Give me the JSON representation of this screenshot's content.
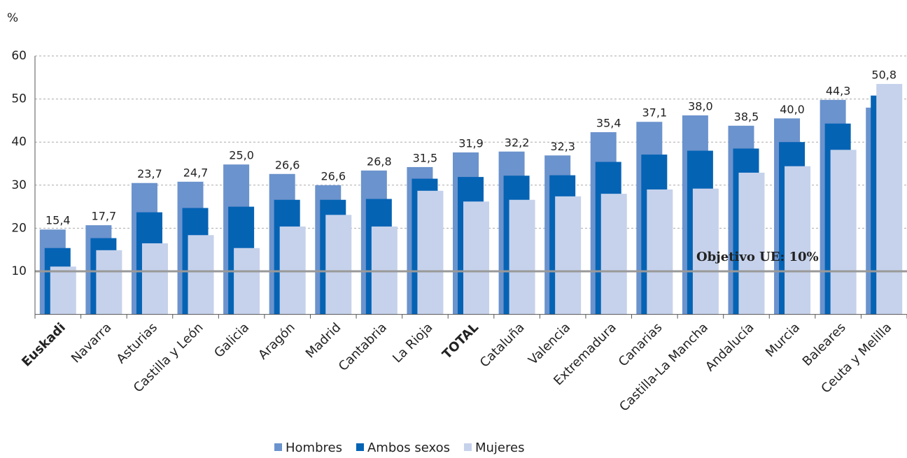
{
  "chart_data": {
    "type": "overlapped_bar",
    "y_unit": "%",
    "categories": [
      "Euskadi",
      "Navarra",
      "Asturias",
      "Castilla y León",
      "Galicia",
      "Aragón",
      "Madrid",
      "Cantabria",
      "La Rioja",
      "TOTAL",
      "Cataluña",
      "Valencia",
      "Extremadura",
      "Canarias",
      "Castilla-La Mancha",
      "Andalucía",
      "Murcia",
      "Baleares",
      "Ceuta y Melilla"
    ],
    "series": [
      {
        "name": "Hombres",
        "color": "#6b93cd",
        "values": [
          19.7,
          20.7,
          30.5,
          30.8,
          34.8,
          32.6,
          30.0,
          33.4,
          34.2,
          37.6,
          37.8,
          36.9,
          42.3,
          44.7,
          46.2,
          43.8,
          45.5,
          49.8,
          48.0
        ]
      },
      {
        "name": "Ambos sexos",
        "color": "#0563b4",
        "values": [
          15.4,
          17.7,
          23.7,
          24.7,
          25.0,
          26.6,
          26.6,
          26.8,
          31.5,
          31.9,
          32.2,
          32.3,
          35.4,
          37.1,
          38.0,
          38.5,
          40.0,
          44.3,
          50.8
        ],
        "value_labels": [
          "15,4",
          "17,7",
          "23,7",
          "24,7",
          "25,0",
          "26,6",
          "26,6",
          "26,8",
          "31,5",
          "31,9",
          "32,2",
          "32,3",
          "35,4",
          "37,1",
          "38,0",
          "38,5",
          "40,0",
          "44,3",
          "50,8"
        ]
      },
      {
        "name": "Mujeres",
        "color": "#c6d2eb",
        "values": [
          11.1,
          14.9,
          16.5,
          18.4,
          15.4,
          20.4,
          23.1,
          20.4,
          28.7,
          26.2,
          26.6,
          27.4,
          28.0,
          29.0,
          29.2,
          32.9,
          34.4,
          38.2,
          53.5
        ]
      }
    ],
    "ylim": [
      0,
      60
    ],
    "yticks": [
      10,
      20,
      30,
      40,
      50,
      60
    ],
    "grid": true,
    "reference_line": {
      "value": 10,
      "label": "Objetivo UE: 10%",
      "color": "#999999"
    },
    "legend": "bottom"
  }
}
